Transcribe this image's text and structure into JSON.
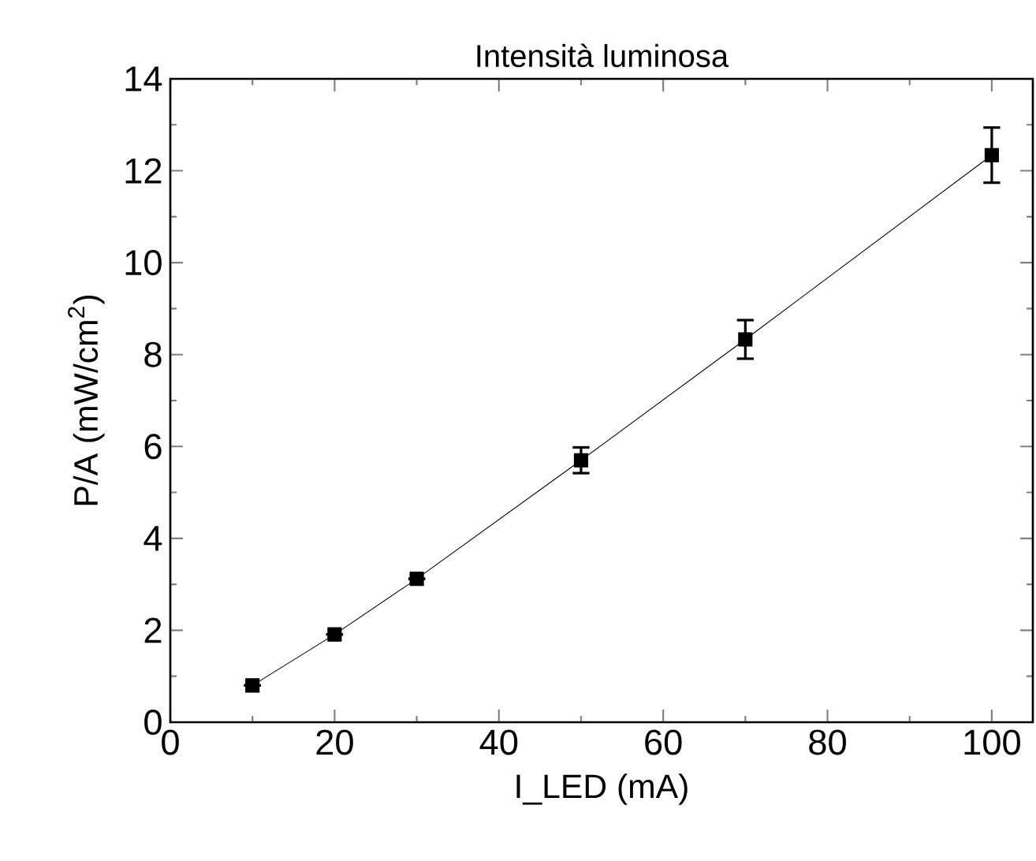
{
  "chart_data": {
    "type": "line",
    "title": "Intensità luminosa",
    "xlabel": "I_LED (mA)",
    "ylabel": "P/A (mW/cm$^{2}$)",
    "x": [
      10,
      20,
      30,
      50,
      70,
      100
    ],
    "series": [
      {
        "color": "#000000",
        "values": [
          0.8,
          1.91,
          3.12,
          5.7,
          8.33,
          12.34
        ],
        "errors": [
          null,
          null,
          null,
          0.28,
          0.42,
          0.6
        ]
      }
    ],
    "marker": "square",
    "line_style": "solid",
    "xlim": [
      0,
      105
    ],
    "ylim": [
      0,
      14
    ],
    "xticks": [
      0,
      20,
      40,
      60,
      80,
      100
    ],
    "yticks": [
      0,
      2,
      4,
      6,
      8,
      10,
      12,
      14
    ],
    "grid": false
  }
}
